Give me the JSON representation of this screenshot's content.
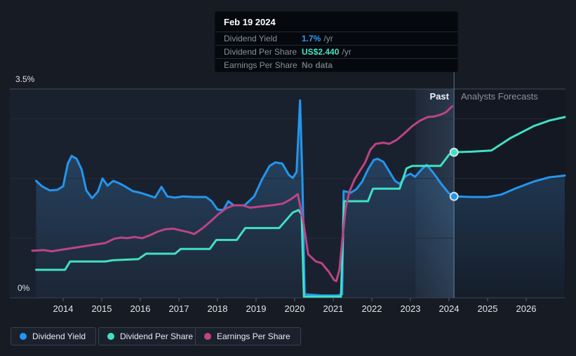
{
  "tooltip": {
    "date": "Feb 19 2024",
    "rows": [
      {
        "label": "Dividend Yield",
        "value": "1.7%",
        "suffix": "/yr",
        "color": "#2e9df2"
      },
      {
        "label": "Dividend Per Share",
        "value": "US$2.440",
        "suffix": "/yr",
        "color": "#47e3c4"
      },
      {
        "label": "Earnings Per Share",
        "value": "No data",
        "suffix": "",
        "color": "#6b7380"
      }
    ]
  },
  "labels": {
    "past": "Past",
    "forecast": "Analysts Forecasts",
    "y_top": "3.5%",
    "y_bottom": "0%"
  },
  "legend": [
    {
      "label": "Dividend Yield",
      "color": "#2196f3"
    },
    {
      "label": "Dividend Per Share",
      "color": "#41e0c3"
    },
    {
      "label": "Earnings Per Share",
      "color": "#bd4485"
    }
  ],
  "chart_data": {
    "type": "line",
    "x_ticks": [
      "2014",
      "2015",
      "2016",
      "2017",
      "2018",
      "2019",
      "2020",
      "2021",
      "2022",
      "2023",
      "2024",
      "2025",
      "2026"
    ],
    "ylim": [
      0,
      3.5
    ],
    "grid_pct": [
      3.5,
      3,
      2,
      1,
      0
    ],
    "y_top_label": "3.5%",
    "y_bottom_label": "0%",
    "divider_x": 2024.13,
    "band": [
      2023.13,
      2024.13
    ],
    "legend_position": "bottom",
    "colors": {
      "past_bg": "#1a212e",
      "forecast_bg": "#131822",
      "divider": "rgba(148,184,223,0.38)"
    },
    "markers": [
      {
        "series": 0,
        "x": 2024.13,
        "v": 1.7
      },
      {
        "series": 1,
        "x": 2024.13,
        "v": 2.44
      }
    ],
    "series": [
      {
        "name": "Dividend Yield",
        "unit": "%",
        "color": "#2496ed",
        "past": [
          [
            2013.3,
            1.96
          ],
          [
            2013.45,
            1.87
          ],
          [
            2013.65,
            1.8
          ],
          [
            2013.85,
            1.81
          ],
          [
            2014.0,
            1.87
          ],
          [
            2014.12,
            2.25
          ],
          [
            2014.22,
            2.38
          ],
          [
            2014.35,
            2.33
          ],
          [
            2014.48,
            2.15
          ],
          [
            2014.6,
            1.8
          ],
          [
            2014.75,
            1.67
          ],
          [
            2014.9,
            1.78
          ],
          [
            2015.02,
            2.0
          ],
          [
            2015.15,
            1.88
          ],
          [
            2015.3,
            1.96
          ],
          [
            2015.45,
            1.92
          ],
          [
            2015.6,
            1.87
          ],
          [
            2015.8,
            1.79
          ],
          [
            2016.0,
            1.76
          ],
          [
            2016.2,
            1.72
          ],
          [
            2016.38,
            1.68
          ],
          [
            2016.55,
            1.86
          ],
          [
            2016.7,
            1.7
          ],
          [
            2016.9,
            1.68
          ],
          [
            2017.1,
            1.7
          ],
          [
            2017.4,
            1.69
          ],
          [
            2017.7,
            1.69
          ],
          [
            2017.85,
            1.62
          ],
          [
            2018.0,
            1.48
          ],
          [
            2018.15,
            1.47
          ],
          [
            2018.28,
            1.62
          ],
          [
            2018.42,
            1.55
          ],
          [
            2018.7,
            1.55
          ],
          [
            2018.95,
            1.7
          ],
          [
            2019.15,
            1.98
          ],
          [
            2019.35,
            2.21
          ],
          [
            2019.5,
            2.27
          ],
          [
            2019.68,
            2.25
          ],
          [
            2019.85,
            2.06
          ],
          [
            2019.95,
            2.01
          ],
          [
            2020.05,
            2.11
          ],
          [
            2020.14,
            3.31
          ],
          [
            2020.2,
            2.0
          ],
          [
            2020.26,
            0.06
          ],
          [
            2020.7,
            0.04
          ],
          [
            2021.1,
            0.04
          ],
          [
            2021.23,
            0.06
          ],
          [
            2021.27,
            1.79
          ],
          [
            2021.45,
            1.76
          ],
          [
            2021.6,
            1.82
          ],
          [
            2021.75,
            1.95
          ],
          [
            2021.9,
            2.15
          ],
          [
            2022.05,
            2.31
          ],
          [
            2022.15,
            2.33
          ],
          [
            2022.3,
            2.28
          ],
          [
            2022.45,
            2.12
          ],
          [
            2022.6,
            1.96
          ],
          [
            2022.72,
            1.91
          ],
          [
            2022.88,
            2.04
          ],
          [
            2023.0,
            2.08
          ],
          [
            2023.12,
            2.03
          ],
          [
            2023.3,
            2.16
          ],
          [
            2023.42,
            2.23
          ],
          [
            2023.6,
            2.09
          ],
          [
            2023.8,
            1.91
          ],
          [
            2024.0,
            1.75
          ],
          [
            2024.13,
            1.7
          ]
        ],
        "forecast": [
          [
            2024.13,
            1.7
          ],
          [
            2024.6,
            1.69
          ],
          [
            2025.0,
            1.69
          ],
          [
            2025.35,
            1.73
          ],
          [
            2025.75,
            1.84
          ],
          [
            2026.2,
            1.95
          ],
          [
            2026.6,
            2.02
          ],
          [
            2027.0,
            2.05
          ]
        ]
      },
      {
        "name": "Dividend Per Share",
        "unit": "US$",
        "color": "#41e0c3",
        "past": [
          [
            2013.3,
            0.47
          ],
          [
            2014.05,
            0.47
          ],
          [
            2014.18,
            0.61
          ],
          [
            2015.1,
            0.61
          ],
          [
            2015.28,
            0.63
          ],
          [
            2015.95,
            0.65
          ],
          [
            2016.15,
            0.74
          ],
          [
            2016.9,
            0.74
          ],
          [
            2017.05,
            0.82
          ],
          [
            2017.8,
            0.82
          ],
          [
            2017.97,
            0.97
          ],
          [
            2018.5,
            0.97
          ],
          [
            2018.72,
            1.17
          ],
          [
            2019.6,
            1.17
          ],
          [
            2019.95,
            1.43
          ],
          [
            2020.1,
            1.47
          ],
          [
            2020.18,
            1.4
          ],
          [
            2020.24,
            0.02
          ],
          [
            2021.2,
            0.02
          ],
          [
            2021.28,
            1.62
          ],
          [
            2021.9,
            1.62
          ],
          [
            2022.03,
            1.83
          ],
          [
            2022.72,
            1.83
          ],
          [
            2022.9,
            2.17
          ],
          [
            2023.05,
            2.21
          ],
          [
            2023.78,
            2.21
          ],
          [
            2024.0,
            2.4
          ],
          [
            2024.13,
            2.44
          ]
        ],
        "forecast": [
          [
            2024.13,
            2.44
          ],
          [
            2024.6,
            2.45
          ],
          [
            2025.1,
            2.47
          ],
          [
            2025.6,
            2.68
          ],
          [
            2026.2,
            2.88
          ],
          [
            2026.6,
            2.97
          ],
          [
            2027.0,
            3.03
          ]
        ]
      },
      {
        "name": "Earnings Per Share",
        "unit": "US$",
        "color": "#bd4485",
        "past": [
          [
            2013.2,
            0.79
          ],
          [
            2013.5,
            0.8
          ],
          [
            2013.7,
            0.78
          ],
          [
            2014.0,
            0.81
          ],
          [
            2014.3,
            0.84
          ],
          [
            2014.6,
            0.87
          ],
          [
            2014.9,
            0.9
          ],
          [
            2015.1,
            0.92
          ],
          [
            2015.32,
            0.99
          ],
          [
            2015.5,
            1.01
          ],
          [
            2015.65,
            1.0
          ],
          [
            2015.85,
            1.02
          ],
          [
            2016.05,
            1.0
          ],
          [
            2016.25,
            1.05
          ],
          [
            2016.45,
            1.11
          ],
          [
            2016.65,
            1.15
          ],
          [
            2016.85,
            1.16
          ],
          [
            2017.05,
            1.13
          ],
          [
            2017.25,
            1.1
          ],
          [
            2017.4,
            1.07
          ],
          [
            2017.62,
            1.17
          ],
          [
            2017.82,
            1.28
          ],
          [
            2018.02,
            1.4
          ],
          [
            2018.22,
            1.5
          ],
          [
            2018.42,
            1.55
          ],
          [
            2018.65,
            1.55
          ],
          [
            2018.85,
            1.51
          ],
          [
            2019.1,
            1.53
          ],
          [
            2019.4,
            1.55
          ],
          [
            2019.7,
            1.58
          ],
          [
            2019.92,
            1.66
          ],
          [
            2020.08,
            1.74
          ],
          [
            2020.22,
            1.3
          ],
          [
            2020.35,
            0.73
          ],
          [
            2020.55,
            0.61
          ],
          [
            2020.7,
            0.58
          ],
          [
            2020.88,
            0.44
          ],
          [
            2021.02,
            0.3
          ],
          [
            2021.08,
            0.28
          ],
          [
            2021.16,
            0.47
          ],
          [
            2021.23,
            0.94
          ],
          [
            2021.32,
            1.5
          ],
          [
            2021.42,
            1.78
          ],
          [
            2021.55,
            1.98
          ],
          [
            2021.68,
            2.12
          ],
          [
            2021.82,
            2.26
          ],
          [
            2021.96,
            2.48
          ],
          [
            2022.1,
            2.58
          ],
          [
            2022.3,
            2.6
          ],
          [
            2022.45,
            2.58
          ],
          [
            2022.65,
            2.65
          ],
          [
            2022.85,
            2.76
          ],
          [
            2023.05,
            2.88
          ],
          [
            2023.25,
            2.97
          ],
          [
            2023.45,
            3.03
          ],
          [
            2023.62,
            3.04
          ],
          [
            2023.78,
            3.07
          ],
          [
            2023.92,
            3.11
          ],
          [
            2024.08,
            3.21
          ]
        ]
      }
    ]
  }
}
